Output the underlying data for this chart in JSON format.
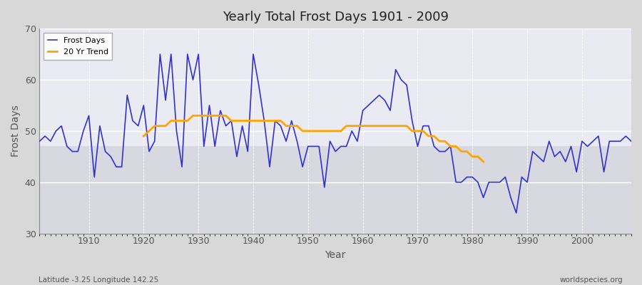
{
  "title": "Yearly Total Frost Days 1901 - 2009",
  "xlabel": "Year",
  "ylabel": "Frost Days",
  "xlim": [
    1901,
    2009
  ],
  "ylim": [
    30,
    70
  ],
  "yticks": [
    30,
    40,
    50,
    60,
    70
  ],
  "bg_color": "#e8e8e8",
  "plot_bg_upper": "#e0e0e8",
  "plot_bg_lower": "#d8d8d8",
  "frost_color": "#3333cc",
  "trend_color": "#ffa500",
  "subtitle_left": "Latitude -3.25 Longitude 142.25",
  "subtitle_right": "worldspecies.org",
  "years": [
    1901,
    1902,
    1903,
    1904,
    1905,
    1906,
    1907,
    1908,
    1909,
    1910,
    1911,
    1912,
    1913,
    1914,
    1915,
    1916,
    1917,
    1918,
    1919,
    1920,
    1921,
    1922,
    1923,
    1924,
    1925,
    1926,
    1927,
    1928,
    1929,
    1930,
    1931,
    1932,
    1933,
    1934,
    1935,
    1936,
    1937,
    1938,
    1939,
    1940,
    1941,
    1942,
    1943,
    1944,
    1945,
    1946,
    1947,
    1948,
    1949,
    1950,
    1951,
    1952,
    1953,
    1954,
    1955,
    1956,
    1957,
    1958,
    1959,
    1960,
    1961,
    1962,
    1963,
    1964,
    1965,
    1966,
    1967,
    1968,
    1969,
    1970,
    1971,
    1972,
    1973,
    1974,
    1975,
    1976,
    1977,
    1978,
    1979,
    1980,
    1981,
    1982,
    1983,
    1984,
    1985,
    1986,
    1987,
    1988,
    1989,
    1990,
    1991,
    1992,
    1993,
    1994,
    1995,
    1996,
    1997,
    1998,
    1999,
    2000,
    2001,
    2002,
    2003,
    2004,
    2005,
    2006,
    2007,
    2008,
    2009
  ],
  "frost_days": [
    48,
    49,
    48,
    50,
    51,
    47,
    46,
    46,
    50,
    53,
    41,
    51,
    46,
    45,
    43,
    43,
    57,
    52,
    51,
    55,
    46,
    48,
    65,
    56,
    65,
    50,
    43,
    65,
    60,
    65,
    47,
    55,
    47,
    54,
    51,
    52,
    45,
    51,
    46,
    65,
    59,
    52,
    43,
    52,
    51,
    48,
    52,
    48,
    43,
    47,
    47,
    47,
    39,
    48,
    46,
    47,
    47,
    50,
    48,
    54,
    55,
    56,
    57,
    56,
    54,
    62,
    60,
    59,
    52,
    47,
    51,
    51,
    47,
    46,
    46,
    47,
    40,
    40,
    41,
    41,
    40,
    37,
    40,
    40,
    40,
    41,
    37,
    34,
    41,
    40,
    46,
    45,
    44,
    48,
    45,
    46,
    44,
    47,
    42,
    48,
    47,
    48,
    49,
    42,
    48,
    48,
    48,
    49,
    48
  ],
  "trend_years": [
    1920,
    1921,
    1922,
    1923,
    1924,
    1925,
    1926,
    1927,
    1928,
    1929,
    1930,
    1931,
    1932,
    1933,
    1934,
    1935,
    1936,
    1937,
    1938,
    1939,
    1940,
    1941,
    1942,
    1943,
    1944,
    1945,
    1946,
    1947,
    1948,
    1949,
    1950,
    1951,
    1952,
    1953,
    1954,
    1955,
    1956,
    1957,
    1958,
    1959,
    1960,
    1961,
    1962,
    1963,
    1964,
    1965,
    1966,
    1967,
    1968,
    1969,
    1970,
    1971,
    1972,
    1973,
    1974,
    1975,
    1976,
    1977,
    1978,
    1979,
    1980,
    1981,
    1982
  ],
  "trend_values": [
    49,
    50,
    51,
    51,
    51,
    52,
    52,
    52,
    52,
    53,
    53,
    53,
    53,
    53,
    53,
    53,
    52,
    52,
    52,
    52,
    52,
    52,
    52,
    52,
    52,
    52,
    51,
    51,
    51,
    50,
    50,
    50,
    50,
    50,
    50,
    50,
    50,
    51,
    51,
    51,
    51,
    51,
    51,
    51,
    51,
    51,
    51,
    51,
    51,
    50,
    50,
    50,
    49,
    49,
    48,
    48,
    47,
    47,
    46,
    46,
    45,
    45,
    44
  ]
}
